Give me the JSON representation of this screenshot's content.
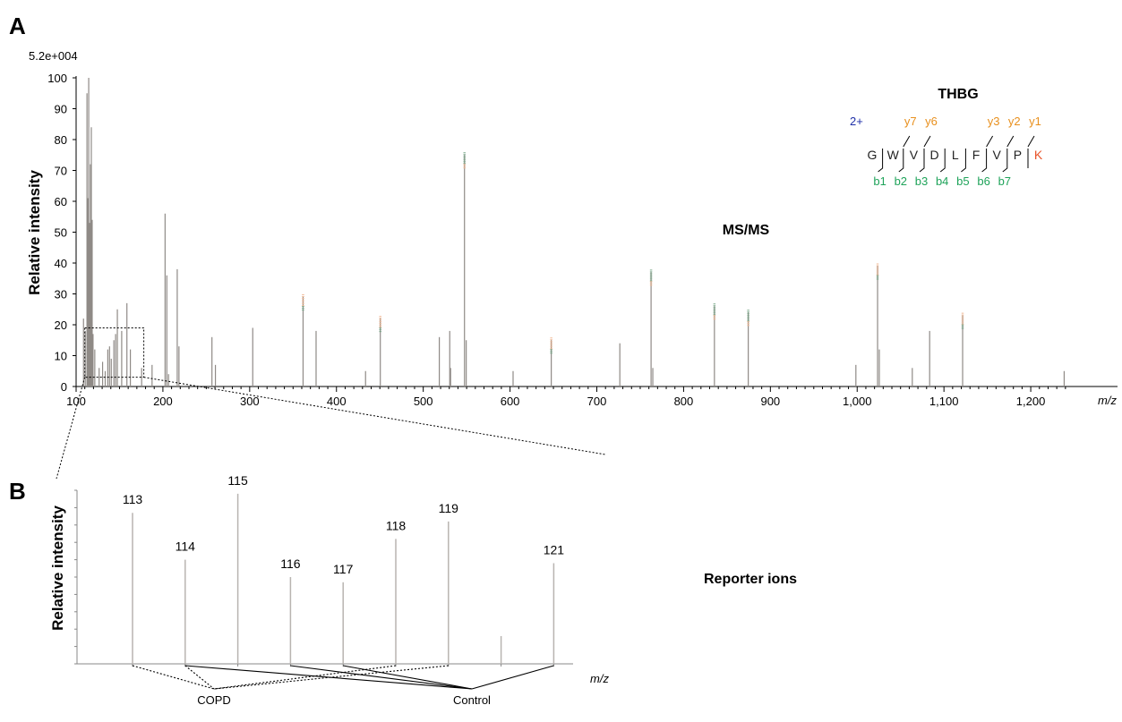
{
  "panel_a": {
    "letter": "A",
    "scale_label": "5.2e+004",
    "heading": "MS/MS"
  },
  "panel_b": {
    "letter": "B",
    "heading": "Reporter ions"
  },
  "peptide": {
    "protein": "THBG",
    "charge": "2+",
    "residues": [
      "G",
      "W",
      "V",
      "D",
      "L",
      "F",
      "V",
      "P",
      "K"
    ],
    "y_ions": [
      {
        "label": "y7",
        "after_residue": 2
      },
      {
        "label": "y6",
        "after_residue": 3
      },
      {
        "label": "y3",
        "after_residue": 6
      },
      {
        "label": "y2",
        "after_residue": 7
      },
      {
        "label": "y1",
        "after_residue": 8
      }
    ],
    "b_ions": [
      {
        "label": "b1",
        "after_residue": 1
      },
      {
        "label": "b2",
        "after_residue": 2
      },
      {
        "label": "b3",
        "after_residue": 3
      },
      {
        "label": "b4",
        "after_residue": 4
      },
      {
        "label": "b5",
        "after_residue": 5
      },
      {
        "label": "b6",
        "after_residue": 6
      },
      {
        "label": "b7",
        "after_residue": 7
      }
    ],
    "colors": {
      "charge": "#1f2fa8",
      "y": "#e8901e",
      "b": "#1fa35a",
      "k": "#e8552b",
      "text": "#222222"
    }
  },
  "chart_data": [
    {
      "type": "bar",
      "panel": "A",
      "xlabel": "m/z",
      "ylabel": "Relative intensity",
      "xlim": [
        100,
        1300
      ],
      "ylim": [
        0,
        100
      ],
      "x_ticks": [
        100,
        200,
        300,
        400,
        500,
        600,
        700,
        800,
        900,
        1000,
        1100,
        1200
      ],
      "x_tick_labels": [
        "100",
        "200",
        "300",
        "400",
        "500",
        "600",
        "700",
        "800",
        "900",
        "1,000",
        "1,100",
        "1,200"
      ],
      "y_ticks": [
        0,
        10,
        20,
        30,
        40,
        50,
        60,
        70,
        80,
        90,
        100
      ],
      "y_tick_labels": [
        "0",
        "10",
        "20",
        "30",
        "40",
        "50",
        "60",
        "70",
        "80",
        "90",
        "100"
      ],
      "zoom_box": {
        "x": [
          110,
          178
        ],
        "y": [
          3,
          19
        ]
      },
      "colors": {
        "peak": "#8f8a86",
        "labeled_y": "#f0b894",
        "labeled_b": "#7aa88a"
      },
      "peaks": [
        {
          "x": 108,
          "y": 22
        },
        {
          "x": 110,
          "y": 18
        },
        {
          "x": 112,
          "y": 95
        },
        {
          "x": 113,
          "y": 61
        },
        {
          "x": 114,
          "y": 100
        },
        {
          "x": 115,
          "y": 53
        },
        {
          "x": 116,
          "y": 72
        },
        {
          "x": 117,
          "y": 84
        },
        {
          "x": 118,
          "y": 54
        },
        {
          "x": 119,
          "y": 17
        },
        {
          "x": 121,
          "y": 12
        },
        {
          "x": 126,
          "y": 6
        },
        {
          "x": 130,
          "y": 8
        },
        {
          "x": 133,
          "y": 5
        },
        {
          "x": 136,
          "y": 12
        },
        {
          "x": 138,
          "y": 13
        },
        {
          "x": 140,
          "y": 9
        },
        {
          "x": 143,
          "y": 15
        },
        {
          "x": 145,
          "y": 17
        },
        {
          "x": 147,
          "y": 25
        },
        {
          "x": 152,
          "y": 18
        },
        {
          "x": 158,
          "y": 27
        },
        {
          "x": 162,
          "y": 12
        },
        {
          "x": 175,
          "y": 6
        },
        {
          "x": 187,
          "y": 7
        },
        {
          "x": 202,
          "y": 56
        },
        {
          "x": 204,
          "y": 36
        },
        {
          "x": 206,
          "y": 4
        },
        {
          "x": 216,
          "y": 38
        },
        {
          "x": 218,
          "y": 13
        },
        {
          "x": 256,
          "y": 16
        },
        {
          "x": 260,
          "y": 7
        },
        {
          "x": 303,
          "y": 19
        },
        {
          "x": 361,
          "y": 29,
          "label": "y"
        },
        {
          "x": 376,
          "y": 18
        },
        {
          "x": 433,
          "y": 5
        },
        {
          "x": 450,
          "y": 22,
          "label": "y"
        },
        {
          "x": 518,
          "y": 16
        },
        {
          "x": 530,
          "y": 18
        },
        {
          "x": 531,
          "y": 6
        },
        {
          "x": 547,
          "y": 75,
          "label": "b"
        },
        {
          "x": 549,
          "y": 15
        },
        {
          "x": 603,
          "y": 5
        },
        {
          "x": 647,
          "y": 15,
          "label": "y"
        },
        {
          "x": 726,
          "y": 14
        },
        {
          "x": 762,
          "y": 37,
          "label": "b"
        },
        {
          "x": 764,
          "y": 6
        },
        {
          "x": 835,
          "y": 26,
          "label": "b"
        },
        {
          "x": 874,
          "y": 24,
          "label": "b"
        },
        {
          "x": 998,
          "y": 7
        },
        {
          "x": 1023,
          "y": 39,
          "label": "y"
        },
        {
          "x": 1025,
          "y": 12
        },
        {
          "x": 1063,
          "y": 6
        },
        {
          "x": 1083,
          "y": 18
        },
        {
          "x": 1121,
          "y": 23,
          "label": "y"
        },
        {
          "x": 1238,
          "y": 5
        }
      ]
    },
    {
      "type": "bar",
      "panel": "B",
      "xlabel": "m/z",
      "ylabel": "Relative intensity",
      "xlim": [
        112,
        122
      ],
      "ylim": [
        0,
        100
      ],
      "peaks": [
        {
          "x": 113,
          "y": 87,
          "label": "113"
        },
        {
          "x": 114,
          "y": 60,
          "label": "114"
        },
        {
          "x": 115,
          "y": 98,
          "label": "115"
        },
        {
          "x": 116,
          "y": 50,
          "label": "116"
        },
        {
          "x": 117,
          "y": 47,
          "label": "117"
        },
        {
          "x": 118,
          "y": 72,
          "label": "118"
        },
        {
          "x": 119,
          "y": 82,
          "label": "119"
        },
        {
          "x": 120,
          "y": 16
        },
        {
          "x": 121,
          "y": 58,
          "label": "121"
        }
      ],
      "groups": [
        {
          "name": "COPD",
          "members": [
            "113",
            "114",
            "118",
            "119"
          ],
          "style": "dotted"
        },
        {
          "name": "Control",
          "members": [
            "114",
            "116",
            "117",
            "121"
          ],
          "style": "solid"
        }
      ]
    }
  ]
}
